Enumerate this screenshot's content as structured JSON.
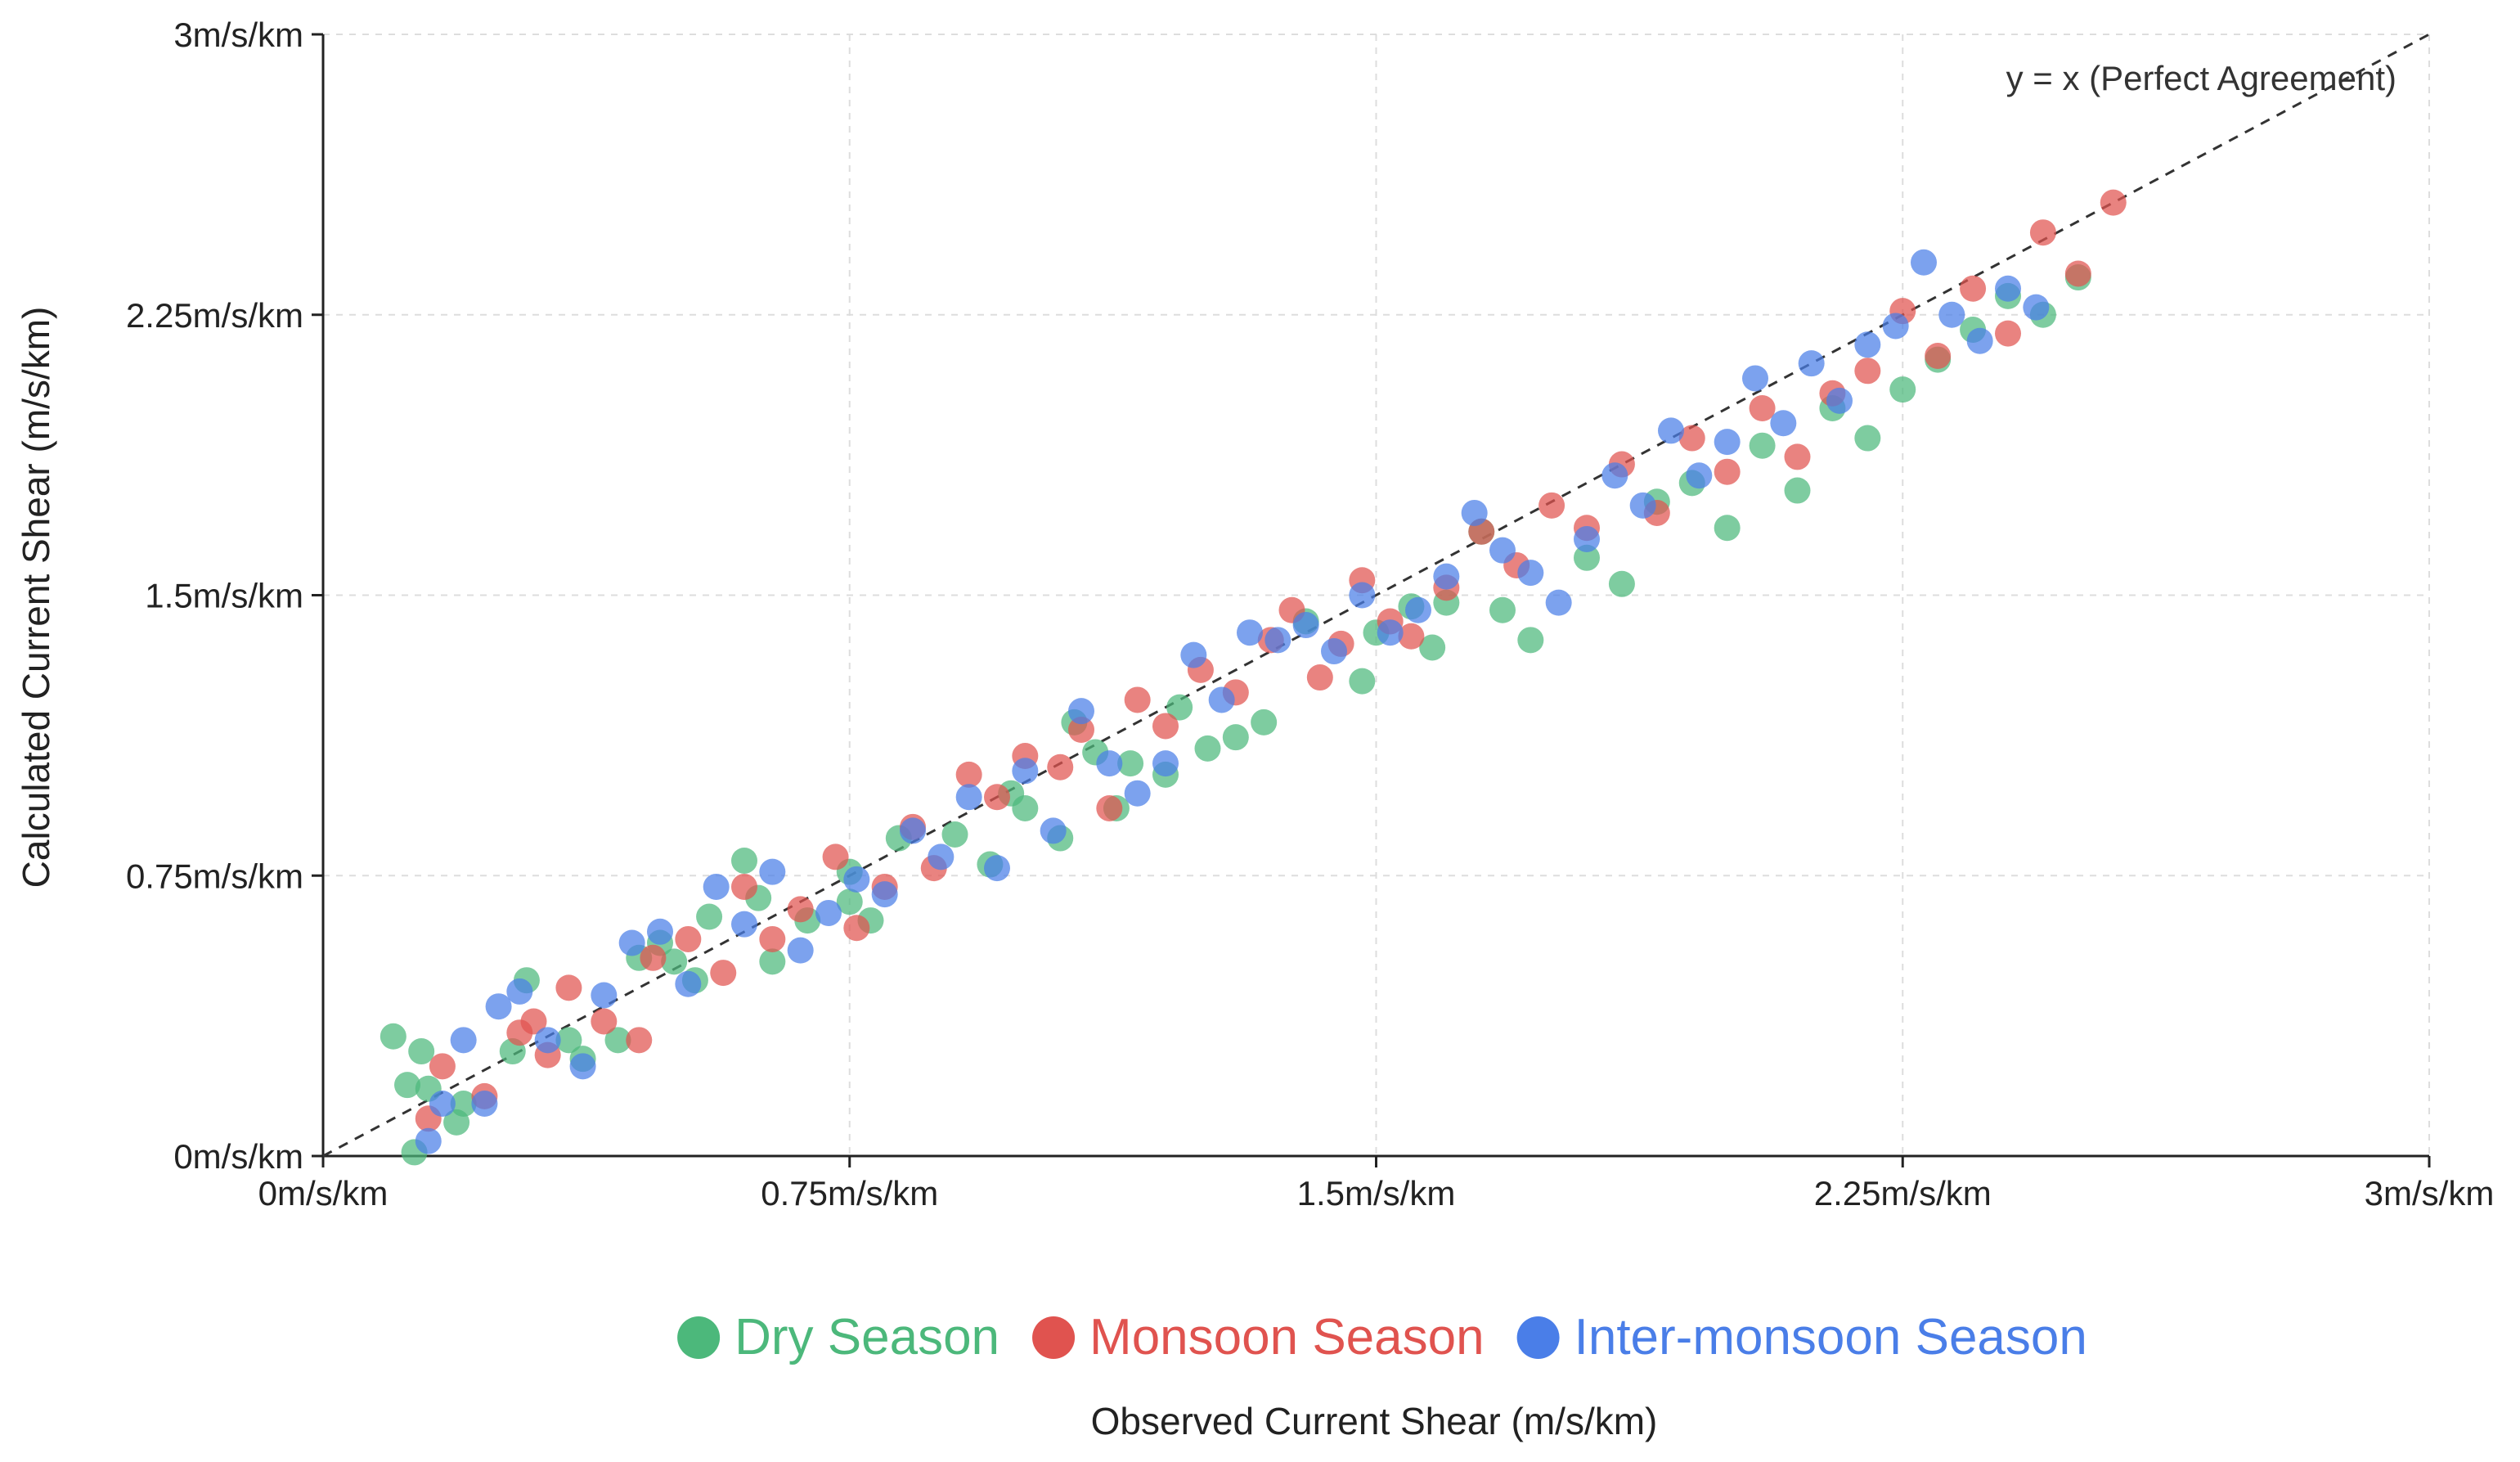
{
  "chart_data": {
    "type": "scatter",
    "xlabel": "Observed Current Shear (m/s/km)",
    "ylabel": "Calculated Current Shear (m/s/km)",
    "xlim": [
      0,
      3
    ],
    "ylim": [
      0,
      3
    ],
    "x_ticks": [
      0,
      0.75,
      1.5,
      2.25,
      3
    ],
    "y_ticks": [
      0,
      0.75,
      1.5,
      2.25,
      3
    ],
    "x_tick_labels": [
      "0m/s/km",
      "0.75m/s/km",
      "1.5m/s/km",
      "2.25m/s/km",
      "3m/s/km"
    ],
    "y_tick_labels": [
      "0m/s/km",
      "0.75m/s/km",
      "1.5m/s/km",
      "2.25m/s/km",
      "3m/s/km"
    ],
    "grid": true,
    "legend_position": "bottom",
    "reference_line": {
      "label": "y = x (Perfect Agreement)",
      "slope": 1,
      "intercept": 0
    },
    "series": [
      {
        "name": "Dry Season",
        "color": "#4cb87b",
        "points": [
          [
            0.1,
            0.32
          ],
          [
            0.12,
            0.19
          ],
          [
            0.13,
            0.01
          ],
          [
            0.14,
            0.28
          ],
          [
            0.15,
            0.18
          ],
          [
            0.19,
            0.09
          ],
          [
            0.2,
            0.14
          ],
          [
            0.27,
            0.28
          ],
          [
            0.29,
            0.47
          ],
          [
            0.35,
            0.31
          ],
          [
            0.37,
            0.26
          ],
          [
            0.42,
            0.31
          ],
          [
            0.45,
            0.53
          ],
          [
            0.48,
            0.57
          ],
          [
            0.5,
            0.52
          ],
          [
            0.53,
            0.47
          ],
          [
            0.55,
            0.64
          ],
          [
            0.6,
            0.79
          ],
          [
            0.62,
            0.69
          ],
          [
            0.64,
            0.52
          ],
          [
            0.69,
            0.63
          ],
          [
            0.75,
            0.76
          ],
          [
            0.75,
            0.68
          ],
          [
            0.78,
            0.63
          ],
          [
            0.82,
            0.85
          ],
          [
            0.9,
            0.86
          ],
          [
            0.95,
            0.78
          ],
          [
            0.98,
            0.97
          ],
          [
            1.0,
            0.93
          ],
          [
            1.05,
            0.85
          ],
          [
            1.07,
            1.16
          ],
          [
            1.1,
            1.08
          ],
          [
            1.13,
            0.93
          ],
          [
            1.15,
            1.05
          ],
          [
            1.2,
            1.02
          ],
          [
            1.22,
            1.2
          ],
          [
            1.26,
            1.09
          ],
          [
            1.3,
            1.12
          ],
          [
            1.34,
            1.16
          ],
          [
            1.4,
            1.43
          ],
          [
            1.48,
            1.27
          ],
          [
            1.5,
            1.4
          ],
          [
            1.55,
            1.47
          ],
          [
            1.58,
            1.36
          ],
          [
            1.6,
            1.48
          ],
          [
            1.65,
            1.67
          ],
          [
            1.68,
            1.46
          ],
          [
            1.72,
            1.38
          ],
          [
            1.8,
            1.6
          ],
          [
            1.85,
            1.53
          ],
          [
            1.9,
            1.75
          ],
          [
            1.95,
            1.8
          ],
          [
            2.0,
            1.68
          ],
          [
            2.05,
            1.9
          ],
          [
            2.1,
            1.78
          ],
          [
            2.15,
            2.0
          ],
          [
            2.2,
            1.92
          ],
          [
            2.25,
            2.05
          ],
          [
            2.3,
            2.13
          ],
          [
            2.35,
            2.21
          ],
          [
            2.4,
            2.3
          ],
          [
            2.45,
            2.25
          ],
          [
            2.5,
            2.35
          ]
        ]
      },
      {
        "name": "Monsoon Season",
        "color": "#e0534f",
        "points": [
          [
            0.15,
            0.1
          ],
          [
            0.17,
            0.24
          ],
          [
            0.23,
            0.16
          ],
          [
            0.28,
            0.33
          ],
          [
            0.3,
            0.36
          ],
          [
            0.32,
            0.27
          ],
          [
            0.35,
            0.45
          ],
          [
            0.4,
            0.36
          ],
          [
            0.45,
            0.31
          ],
          [
            0.47,
            0.53
          ],
          [
            0.52,
            0.58
          ],
          [
            0.57,
            0.49
          ],
          [
            0.6,
            0.72
          ],
          [
            0.64,
            0.58
          ],
          [
            0.68,
            0.66
          ],
          [
            0.73,
            0.8
          ],
          [
            0.76,
            0.61
          ],
          [
            0.8,
            0.72
          ],
          [
            0.84,
            0.88
          ],
          [
            0.87,
            0.77
          ],
          [
            0.92,
            1.02
          ],
          [
            0.96,
            0.96
          ],
          [
            1.0,
            1.07
          ],
          [
            1.05,
            1.04
          ],
          [
            1.08,
            1.14
          ],
          [
            1.12,
            0.93
          ],
          [
            1.16,
            1.22
          ],
          [
            1.2,
            1.15
          ],
          [
            1.25,
            1.3
          ],
          [
            1.3,
            1.24
          ],
          [
            1.35,
            1.38
          ],
          [
            1.38,
            1.46
          ],
          [
            1.42,
            1.28
          ],
          [
            1.45,
            1.37
          ],
          [
            1.48,
            1.54
          ],
          [
            1.52,
            1.43
          ],
          [
            1.55,
            1.39
          ],
          [
            1.6,
            1.52
          ],
          [
            1.65,
            1.67
          ],
          [
            1.7,
            1.58
          ],
          [
            1.75,
            1.74
          ],
          [
            1.8,
            1.68
          ],
          [
            1.85,
            1.85
          ],
          [
            1.9,
            1.72
          ],
          [
            1.95,
            1.92
          ],
          [
            2.0,
            1.83
          ],
          [
            2.05,
            2.0
          ],
          [
            2.1,
            1.87
          ],
          [
            2.15,
            2.04
          ],
          [
            2.2,
            2.1
          ],
          [
            2.25,
            2.26
          ],
          [
            2.3,
            2.14
          ],
          [
            2.35,
            2.32
          ],
          [
            2.4,
            2.2
          ],
          [
            2.45,
            2.47
          ],
          [
            2.5,
            2.36
          ],
          [
            2.55,
            2.55
          ]
        ]
      },
      {
        "name": "Inter-monsoon Season",
        "color": "#4a7ee8",
        "points": [
          [
            0.15,
            0.04
          ],
          [
            0.17,
            0.14
          ],
          [
            0.2,
            0.31
          ],
          [
            0.23,
            0.14
          ],
          [
            0.25,
            0.4
          ],
          [
            0.28,
            0.44
          ],
          [
            0.32,
            0.31
          ],
          [
            0.37,
            0.24
          ],
          [
            0.4,
            0.43
          ],
          [
            0.44,
            0.57
          ],
          [
            0.48,
            0.6
          ],
          [
            0.52,
            0.46
          ],
          [
            0.56,
            0.72
          ],
          [
            0.6,
            0.62
          ],
          [
            0.64,
            0.76
          ],
          [
            0.68,
            0.55
          ],
          [
            0.72,
            0.65
          ],
          [
            0.76,
            0.74
          ],
          [
            0.8,
            0.7
          ],
          [
            0.84,
            0.87
          ],
          [
            0.88,
            0.8
          ],
          [
            0.92,
            0.96
          ],
          [
            0.96,
            0.77
          ],
          [
            1.0,
            1.03
          ],
          [
            1.04,
            0.87
          ],
          [
            1.08,
            1.19
          ],
          [
            1.12,
            1.05
          ],
          [
            1.16,
            0.97
          ],
          [
            1.2,
            1.05
          ],
          [
            1.24,
            1.34
          ],
          [
            1.28,
            1.22
          ],
          [
            1.32,
            1.4
          ],
          [
            1.36,
            1.38
          ],
          [
            1.4,
            1.42
          ],
          [
            1.44,
            1.35
          ],
          [
            1.48,
            1.5
          ],
          [
            1.52,
            1.4
          ],
          [
            1.56,
            1.46
          ],
          [
            1.6,
            1.55
          ],
          [
            1.64,
            1.72
          ],
          [
            1.68,
            1.62
          ],
          [
            1.72,
            1.56
          ],
          [
            1.76,
            1.48
          ],
          [
            1.8,
            1.65
          ],
          [
            1.84,
            1.82
          ],
          [
            1.88,
            1.74
          ],
          [
            1.92,
            1.94
          ],
          [
            1.96,
            1.82
          ],
          [
            2.0,
            1.91
          ],
          [
            2.04,
            2.08
          ],
          [
            2.08,
            1.96
          ],
          [
            2.12,
            2.12
          ],
          [
            2.16,
            2.02
          ],
          [
            2.2,
            2.17
          ],
          [
            2.24,
            2.22
          ],
          [
            2.28,
            2.39
          ],
          [
            2.32,
            2.25
          ],
          [
            2.36,
            2.18
          ],
          [
            2.4,
            2.32
          ],
          [
            2.44,
            2.27
          ]
        ]
      }
    ]
  }
}
